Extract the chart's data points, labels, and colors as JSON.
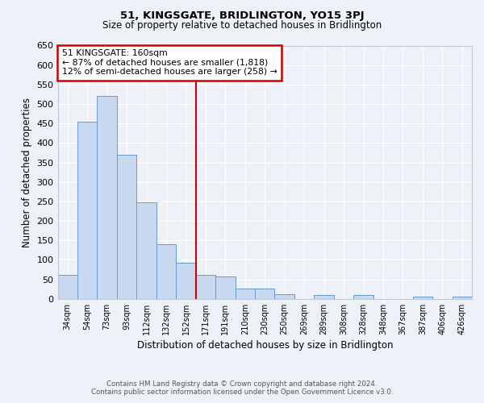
{
  "title": "51, KINGSGATE, BRIDLINGTON, YO15 3PJ",
  "subtitle": "Size of property relative to detached houses in Bridlington",
  "xlabel": "Distribution of detached houses by size in Bridlington",
  "ylabel": "Number of detached properties",
  "bar_labels": [
    "34sqm",
    "54sqm",
    "73sqm",
    "93sqm",
    "112sqm",
    "132sqm",
    "152sqm",
    "171sqm",
    "191sqm",
    "210sqm",
    "230sqm",
    "250sqm",
    "269sqm",
    "289sqm",
    "308sqm",
    "328sqm",
    "348sqm",
    "367sqm",
    "387sqm",
    "406sqm",
    "426sqm"
  ],
  "bar_values": [
    62,
    455,
    520,
    370,
    248,
    140,
    93,
    62,
    58,
    27,
    27,
    13,
    0,
    10,
    0,
    10,
    0,
    0,
    5,
    0,
    5
  ],
  "bar_color": "#c8d8ee",
  "bar_edge_color": "#6699cc",
  "ylim": [
    0,
    650
  ],
  "yticks": [
    0,
    50,
    100,
    150,
    200,
    250,
    300,
    350,
    400,
    450,
    500,
    550,
    600,
    650
  ],
  "vline_color": "#cc0000",
  "annotation_title": "51 KINGSGATE: 160sqm",
  "annotation_line1": "← 87% of detached houses are smaller (1,818)",
  "annotation_line2": "12% of semi-detached houses are larger (258) →",
  "annotation_box_edgecolor": "#cc0000",
  "footer_line1": "Contains HM Land Registry data © Crown copyright and database right 2024.",
  "footer_line2": "Contains public sector information licensed under the Open Government Licence v3.0.",
  "background_color": "#eef2f8",
  "grid_color": "#ffffff"
}
